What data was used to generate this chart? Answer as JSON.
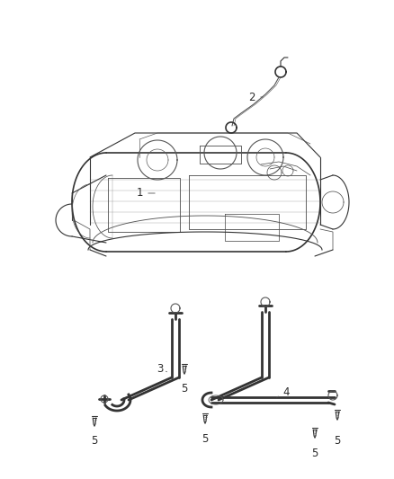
{
  "background_color": "#ffffff",
  "figsize": [
    4.38,
    5.33
  ],
  "dpi": 100,
  "label_color": "#2a2a2a",
  "line_color": "#555555",
  "line_color_dark": "#333333",
  "label_fontsize": 8.5
}
